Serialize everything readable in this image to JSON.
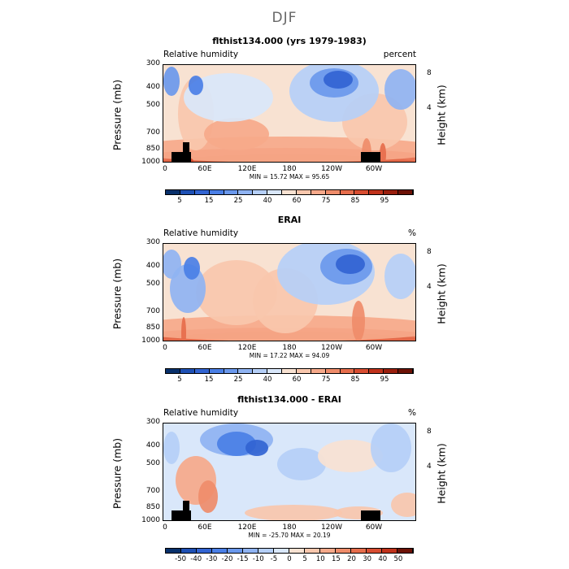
{
  "season_title": "DJF",
  "chart_data": [
    {
      "type": "heatmap",
      "title": "flthist134.000 (yrs 1979-1983)",
      "variable_label": "Relative humidity",
      "units": "percent",
      "ylabel": "Pressure (mb)",
      "right_ylabel": "Height (km)",
      "x_tick_labels": [
        "0",
        "60E",
        "120E",
        "180",
        "120W",
        "60W"
      ],
      "x_ticks_deg_east": [
        0,
        60,
        120,
        180,
        240,
        300
      ],
      "xlim": [
        0,
        360
      ],
      "y_tick_labels": [
        "300",
        "400",
        "500",
        "700",
        "850",
        "1000"
      ],
      "y_ticks_mb": [
        300,
        400,
        500,
        700,
        850,
        1000
      ],
      "ylim": [
        1000,
        300
      ],
      "right_tick_labels": [
        "8",
        "4"
      ],
      "right_ticks_km": [
        8,
        4
      ],
      "min_max_label": "MIN =   15.72   MAX =   95.65",
      "min": 15.72,
      "max": 95.65,
      "colorbar_labels": [
        "5",
        "15",
        "25",
        "40",
        "60",
        "75",
        "85",
        "95"
      ],
      "colorbar_colors": [
        "#08306b",
        "#1e50b4",
        "#3264d2",
        "#4a7fe6",
        "#6a98ec",
        "#8fb3f2",
        "#b5cff7",
        "#d9e7fa",
        "#f8e2d2",
        "#f9c7ad",
        "#f6a98a",
        "#ef8c6a",
        "#e66d4c",
        "#d84d31",
        "#c0321b",
        "#9a1f0e",
        "#6d1206"
      ]
    },
    {
      "type": "heatmap",
      "title": "ERAI",
      "variable_label": "Relative humidity",
      "units": "%",
      "ylabel": "Pressure (mb)",
      "right_ylabel": "Height (km)",
      "x_tick_labels": [
        "0",
        "60E",
        "120E",
        "180",
        "120W",
        "60W"
      ],
      "x_ticks_deg_east": [
        0,
        60,
        120,
        180,
        240,
        300
      ],
      "xlim": [
        0,
        360
      ],
      "y_tick_labels": [
        "300",
        "400",
        "500",
        "700",
        "850",
        "1000"
      ],
      "y_ticks_mb": [
        300,
        400,
        500,
        700,
        850,
        1000
      ],
      "ylim": [
        1000,
        300
      ],
      "right_tick_labels": [
        "8",
        "4"
      ],
      "right_ticks_km": [
        8,
        4
      ],
      "min_max_label": "MIN =   17.22   MAX =   94.09",
      "min": 17.22,
      "max": 94.09,
      "colorbar_labels": [
        "5",
        "15",
        "25",
        "40",
        "60",
        "75",
        "85",
        "95"
      ],
      "colorbar_colors": [
        "#08306b",
        "#1e50b4",
        "#3264d2",
        "#4a7fe6",
        "#6a98ec",
        "#8fb3f2",
        "#b5cff7",
        "#d9e7fa",
        "#f8e2d2",
        "#f9c7ad",
        "#f6a98a",
        "#ef8c6a",
        "#e66d4c",
        "#d84d31",
        "#c0321b",
        "#9a1f0e",
        "#6d1206"
      ]
    },
    {
      "type": "heatmap",
      "title": "flthist134.000 - ERAI",
      "variable_label": "Relative humidity",
      "units": "%",
      "ylabel": "Pressure (mb)",
      "right_ylabel": "Height (km)",
      "x_tick_labels": [
        "0",
        "60E",
        "120E",
        "180",
        "120W",
        "60W"
      ],
      "x_ticks_deg_east": [
        0,
        60,
        120,
        180,
        240,
        300
      ],
      "xlim": [
        0,
        360
      ],
      "y_tick_labels": [
        "300",
        "400",
        "500",
        "700",
        "850",
        "1000"
      ],
      "y_ticks_mb": [
        300,
        400,
        500,
        700,
        850,
        1000
      ],
      "ylim": [
        1000,
        300
      ],
      "right_tick_labels": [
        "8",
        "4"
      ],
      "right_ticks_km": [
        8,
        4
      ],
      "min_max_label": "MIN =  -25.70   MAX =   20.19",
      "min": -25.7,
      "max": 20.19,
      "colorbar_labels": [
        "-50",
        "-40",
        "-30",
        "-20",
        "-15",
        "-10",
        "-5",
        "0",
        "5",
        "10",
        "15",
        "20",
        "30",
        "40",
        "50"
      ],
      "colorbar_colors": [
        "#08306b",
        "#1e50b4",
        "#3264d2",
        "#4a7fe6",
        "#6a98ec",
        "#8fb3f2",
        "#b5cff7",
        "#d9e7fa",
        "#f8e2d2",
        "#f9c7ad",
        "#f6a98a",
        "#ef8c6a",
        "#e66d4c",
        "#d84d31",
        "#c0321b",
        "#6d1206"
      ]
    }
  ]
}
